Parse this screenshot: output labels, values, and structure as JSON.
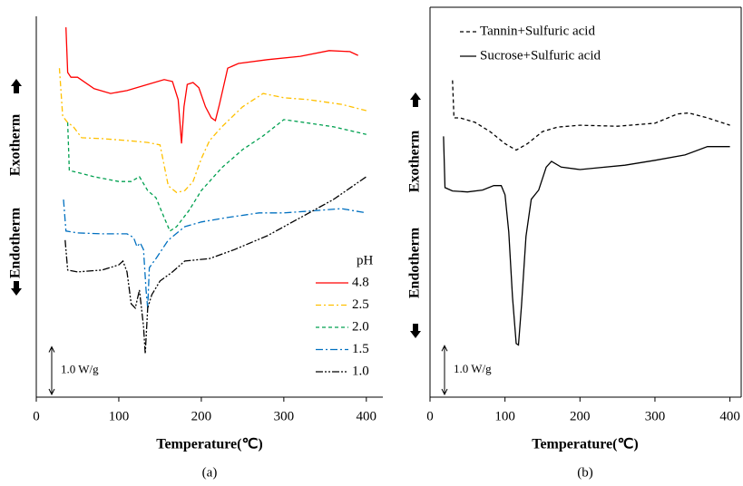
{
  "chart_data": [
    {
      "type": "line",
      "panel_label": "(a)",
      "xlabel": "Temperature(℃)",
      "y_label_top": "Exotherm",
      "y_label_bottom": "Endotherm",
      "xlim": [
        0,
        420
      ],
      "ylim": [
        0,
        8
      ],
      "xticks": [
        0,
        100,
        200,
        300,
        400
      ],
      "legend_title": "pH",
      "legend": "lower right",
      "scale_bar": {
        "value": 1.0,
        "label": "1.0 W/g"
      },
      "series": [
        {
          "name": "4.8",
          "color": "#ff0000",
          "dash": "none",
          "x": [
            36,
            38,
            42,
            50,
            70,
            90,
            110,
            135,
            155,
            165,
            172,
            176,
            179,
            183,
            190,
            197,
            205,
            212,
            217,
            222,
            232,
            245,
            280,
            320,
            355,
            380,
            390
          ],
          "values": [
            7.77,
            6.82,
            6.72,
            6.72,
            6.48,
            6.38,
            6.44,
            6.57,
            6.67,
            6.63,
            6.25,
            5.33,
            6.1,
            6.57,
            6.61,
            6.5,
            6.1,
            5.87,
            5.81,
            6.15,
            6.91,
            7.01,
            7.09,
            7.16,
            7.28,
            7.26,
            7.18
          ]
        },
        {
          "name": "2.5",
          "color": "#ffc000",
          "dash": "6 3 2 3",
          "x": [
            28,
            32,
            38,
            45,
            55,
            80,
            110,
            135,
            150,
            160,
            170,
            180,
            190,
            200,
            210,
            225,
            250,
            275,
            300,
            330,
            370,
            400
          ],
          "values": [
            6.91,
            5.9,
            5.77,
            5.68,
            5.45,
            5.43,
            5.39,
            5.35,
            5.3,
            4.44,
            4.3,
            4.34,
            4.53,
            5.01,
            5.39,
            5.68,
            6.1,
            6.38,
            6.29,
            6.25,
            6.15,
            6.02
          ]
        },
        {
          "name": "2.0",
          "color": "#00a050",
          "dash": "4 3",
          "x": [
            38,
            40,
            50,
            70,
            100,
            115,
            125,
            135,
            145,
            155,
            162,
            170,
            185,
            200,
            225,
            250,
            275,
            300,
            325,
            360,
            400
          ],
          "values": [
            5.77,
            4.76,
            4.72,
            4.63,
            4.53,
            4.53,
            4.63,
            4.34,
            4.19,
            3.77,
            3.49,
            3.58,
            3.92,
            4.34,
            4.82,
            5.2,
            5.49,
            5.83,
            5.77,
            5.68,
            5.52
          ]
        },
        {
          "name": "1.5",
          "color": "#0070c0",
          "dash": "8 3 2 3",
          "x": [
            33,
            36,
            50,
            80,
            110,
            118,
            122,
            126,
            130,
            133,
            135,
            137,
            145,
            160,
            180,
            200,
            230,
            270,
            300,
            340,
            370,
            400
          ],
          "values": [
            4.15,
            3.49,
            3.45,
            3.43,
            3.43,
            3.35,
            3.16,
            3.24,
            3.1,
            2.25,
            1.87,
            2.72,
            2.91,
            3.3,
            3.58,
            3.68,
            3.77,
            3.87,
            3.87,
            3.92,
            3.96,
            3.87
          ]
        },
        {
          "name": "1.0",
          "color": "#000000",
          "dash": "8 2 2 2 2 2",
          "x": [
            35,
            38,
            50,
            80,
            100,
            105,
            110,
            115,
            120,
            125,
            130,
            132,
            135,
            140,
            150,
            165,
            180,
            210,
            240,
            280,
            320,
            360,
            400
          ],
          "values": [
            3.3,
            2.67,
            2.63,
            2.67,
            2.78,
            2.86,
            2.63,
            1.96,
            1.87,
            2.25,
            1.49,
            0.91,
            1.87,
            2.15,
            2.44,
            2.63,
            2.86,
            2.91,
            3.1,
            3.39,
            3.77,
            4.15,
            4.63
          ]
        }
      ]
    },
    {
      "type": "line",
      "panel_label": "(b)",
      "xlabel": "Temperature(℃)",
      "y_label_top": "Exotherm",
      "y_label_bottom": "Endotherm",
      "xlim": [
        0,
        415
      ],
      "ylim": [
        0,
        8
      ],
      "xticks": [
        0,
        100,
        200,
        300,
        400
      ],
      "legend": "upper left",
      "scale_bar": {
        "value": 1.0,
        "label": "1.0 W/g"
      },
      "series": [
        {
          "name": "Tannin+Sulfuric acid",
          "color": "#000000",
          "dash": "4 3",
          "x": [
            30,
            32,
            40,
            60,
            80,
            100,
            115,
            130,
            150,
            170,
            200,
            250,
            300,
            330,
            345,
            370,
            400
          ],
          "values": [
            6.5,
            5.73,
            5.73,
            5.64,
            5.45,
            5.2,
            5.07,
            5.2,
            5.45,
            5.54,
            5.58,
            5.56,
            5.62,
            5.81,
            5.83,
            5.73,
            5.58
          ]
        },
        {
          "name": "Sucrose+Sulfuric acid",
          "color": "#000000",
          "dash": "none",
          "x": [
            18,
            20,
            30,
            50,
            70,
            85,
            95,
            100,
            105,
            110,
            115,
            118,
            122,
            128,
            135,
            145,
            155,
            162,
            175,
            200,
            220,
            260,
            300,
            340,
            370,
            390,
            400
          ],
          "values": [
            5.35,
            4.3,
            4.23,
            4.21,
            4.25,
            4.34,
            4.34,
            4.15,
            3.39,
            2.06,
            1.1,
            1.07,
            1.87,
            3.3,
            4.06,
            4.25,
            4.72,
            4.84,
            4.72,
            4.67,
            4.7,
            4.76,
            4.86,
            4.97,
            5.14,
            5.14,
            5.14
          ]
        }
      ]
    }
  ]
}
